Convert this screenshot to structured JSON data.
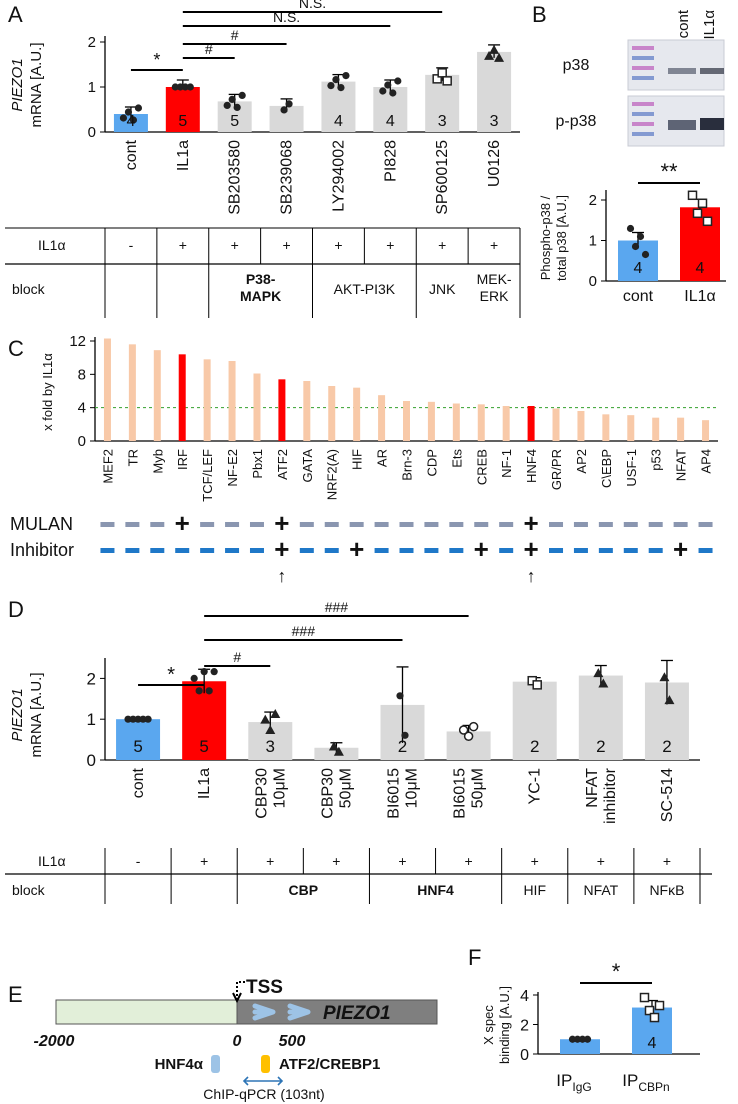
{
  "panels": {
    "A": "A",
    "B": "B",
    "C": "C",
    "D": "D",
    "E": "E",
    "F": "F"
  },
  "colors": {
    "blue": "#5aa7ef",
    "red": "#ff0000",
    "grey": "#d9d9d9",
    "peach": "#f8c9a8",
    "darkred": "#e02020",
    "purple": "#7030a0",
    "teal": "#2e75b6",
    "green": "#92d050",
    "slate": "#4a5a78"
  },
  "chart_data": [
    {
      "id": "A",
      "type": "bar",
      "ylabel_gene": "PIEZO1",
      "ylabel_unit": "mRNA [A.U.]",
      "ylim": [
        0,
        2
      ],
      "yticks": [
        "0",
        "1",
        "2"
      ],
      "categories": [
        "cont",
        "IL1a",
        "SB203580",
        "SB239068",
        "LY294002",
        "PI828",
        "SP600125",
        "U0126"
      ],
      "values": [
        0.4,
        1.0,
        0.68,
        0.58,
        1.12,
        1.0,
        1.27,
        1.78
      ],
      "n": [
        "4",
        "5",
        "5",
        "",
        "4",
        "4",
        "3",
        "3"
      ],
      "significance": [
        {
          "from": "cont",
          "to": "IL1a",
          "label": "*"
        },
        {
          "from": "IL1a",
          "to": "SB203580",
          "label": "#"
        },
        {
          "from": "IL1a",
          "to": "SB239068",
          "label": "#"
        },
        {
          "from": "IL1a",
          "to": "PI828",
          "label": "N.S."
        },
        {
          "from": "IL1a",
          "to": "SP600125",
          "label": "N.S."
        }
      ],
      "table": {
        "row1_label": "IL1α",
        "row1": [
          "-",
          "+",
          "+",
          "+",
          "+",
          "+",
          "+",
          "+"
        ],
        "row2_label": "block",
        "groups": [
          {
            "label": "P38-\nMAPK",
            "red": true
          },
          {
            "label": "AKT-PI3K",
            "red": false
          },
          {
            "label": "JNK",
            "red": false
          },
          {
            "label": "MEK-\nERK",
            "red": false
          }
        ]
      }
    },
    {
      "id": "B",
      "type": "bar",
      "blot_headers": [
        "cont",
        "IL1α"
      ],
      "blot_rows": [
        "p38",
        "p-p38"
      ],
      "ylabel": "Phospho-p38 /\ntotal p38 [A.U.]",
      "ylim": [
        0,
        2
      ],
      "yticks": [
        "0",
        "1",
        "2"
      ],
      "categories": [
        "cont",
        "IL1α"
      ],
      "values": [
        1.0,
        1.82
      ],
      "n": [
        "4",
        "4"
      ],
      "significance": "**"
    },
    {
      "id": "C",
      "type": "bar",
      "ylabel": "x fold by IL1α",
      "ylim": [
        0,
        12
      ],
      "yticks": [
        "0",
        "4",
        "8",
        "12"
      ],
      "threshold": 4,
      "categories": [
        "MEF2",
        "TR",
        "Myb",
        "IRF",
        "TCF/LEF",
        "NF-E2",
        "Pbx1",
        "ATF2",
        "GATA",
        "NRF2(A)",
        "HIF",
        "AR",
        "Brn-3",
        "CDP",
        "Ets",
        "CREB",
        "NF-1",
        "HNF4",
        "GR/PR",
        "AP2",
        "C\\EBP",
        "USF-1",
        "p53",
        "NFAT",
        "AP4"
      ],
      "values": [
        12.3,
        11.6,
        10.9,
        10.4,
        9.8,
        9.6,
        8.1,
        7.4,
        7.2,
        6.6,
        6.4,
        5.5,
        4.8,
        4.7,
        4.5,
        4.4,
        4.2,
        4.2,
        3.9,
        3.6,
        3.2,
        3.1,
        2.8,
        2.8,
        2.5
      ],
      "highlight": [
        "IRF",
        "ATF2",
        "HNF4"
      ],
      "rows": [
        {
          "label": "MULAN",
          "plus": [
            "IRF",
            "ATF2",
            "HNF4"
          ]
        },
        {
          "label": "Inhibitor",
          "plus": [
            "ATF2",
            "HIF",
            "CREB",
            "HNF4",
            "NFAT"
          ]
        }
      ],
      "arrows": [
        "ATF2",
        "HNF4"
      ],
      "arrow_glyph": "↑"
    },
    {
      "id": "D",
      "type": "bar",
      "ylabel_gene": "PIEZO1",
      "ylabel_unit": "mRNA [A.U.]",
      "ylim": [
        0,
        2.5
      ],
      "yticks": [
        "0",
        "1",
        "2"
      ],
      "categories": [
        "cont",
        "IL1a",
        "CBP30\n10μM",
        "CBP30\n50μM",
        "BI6015\n10μM",
        "BI6015\n50μM",
        "YC-1",
        "NFAT\ninhibitor",
        "SC-514"
      ],
      "values": [
        1.0,
        1.93,
        0.93,
        0.3,
        1.35,
        0.7,
        1.92,
        2.07,
        1.9
      ],
      "n": [
        "5",
        "5",
        "3",
        "",
        "2",
        "",
        "2",
        "2",
        "2"
      ],
      "significance": [
        {
          "from": "cont",
          "to": "IL1a",
          "label": "*"
        },
        {
          "from": "IL1a",
          "to": "CBP30\n10μM",
          "label": "#"
        },
        {
          "from": "IL1a",
          "to": "BI6015\n10μM",
          "label": "###"
        },
        {
          "from": "IL1a",
          "to": "BI6015\n50μM",
          "label": "###"
        }
      ],
      "table": {
        "row1_label": "IL1α",
        "row1": [
          "-",
          "+",
          "+",
          "+",
          "+",
          "+",
          "+",
          "+",
          "+"
        ],
        "row2_label": "block",
        "groups": [
          {
            "label": "CBP",
            "red": true
          },
          {
            "label": "HNF4",
            "red": true
          },
          {
            "label": "HIF",
            "red": false
          },
          {
            "label": "NFAT",
            "red": false
          },
          {
            "label": "NFκB",
            "red": false
          }
        ]
      }
    },
    {
      "id": "E",
      "type": "diagram",
      "tss": "TSS",
      "gene": "PIEZO1",
      "positions": [
        "-2000",
        "0",
        "500"
      ],
      "sites": [
        "HNF4α",
        "ATF2/CREBP1"
      ],
      "chip": "ChIP-qPCR (103nt)"
    },
    {
      "id": "F",
      "type": "bar",
      "ylabel": "X spec\nbinding [A.U.]",
      "ylim": [
        0,
        4
      ],
      "yticks": [
        "0",
        "2",
        "4"
      ],
      "categories": [
        "IgG",
        "CBPn"
      ],
      "cat_prefix": "IP",
      "values": [
        1.0,
        3.15
      ],
      "n": [
        "",
        "4"
      ],
      "significance": "*"
    }
  ]
}
